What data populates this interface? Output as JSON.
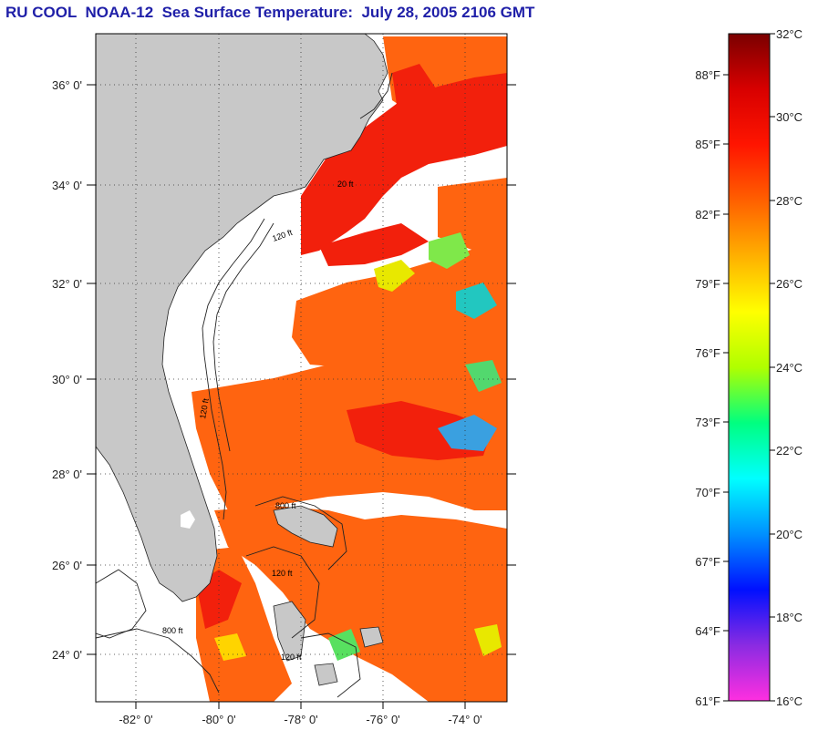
{
  "title": "RU COOL  NOAA-12  Sea Surface Temperature:  July 28, 2005 2106 GMT",
  "map": {
    "lat_ticks": [
      "36° 0'",
      "34° 0'",
      "32° 0'",
      "30° 0'",
      "28° 0'",
      "26° 0'",
      "24° 0'"
    ],
    "lon_ticks": [
      "-82° 0'",
      "-80° 0'",
      "-78° 0'",
      "-76° 0'",
      "-74° 0'"
    ],
    "contour_labels": [
      "20 ft",
      "120 ft",
      "120 ft",
      "800 ft",
      "120 ft",
      "120 ft",
      "800 ft"
    ],
    "colors": {
      "land": "#c8c8c8",
      "cloud": "#ffffff",
      "warm_water": "#ff5a00",
      "hot_water": "#f01a0a",
      "frame": "#000000"
    }
  },
  "colorbar": {
    "celsius_labels": [
      "32°C",
      "30°C",
      "28°C",
      "26°C",
      "24°C",
      "22°C",
      "20°C",
      "18°C",
      "16°C"
    ],
    "fahrenheit_labels": [
      "88°F",
      "85°F",
      "82°F",
      "79°F",
      "76°F",
      "73°F",
      "70°F",
      "67°F",
      "64°F",
      "61°F"
    ],
    "gradient": [
      "#ff2fe0",
      "#8a2be2",
      "#0010ff",
      "#0090ff",
      "#00ffff",
      "#00ff80",
      "#b0ff00",
      "#ffff00",
      "#ffb000",
      "#ff6000",
      "#ff1500",
      "#d80000",
      "#7a0000"
    ]
  }
}
